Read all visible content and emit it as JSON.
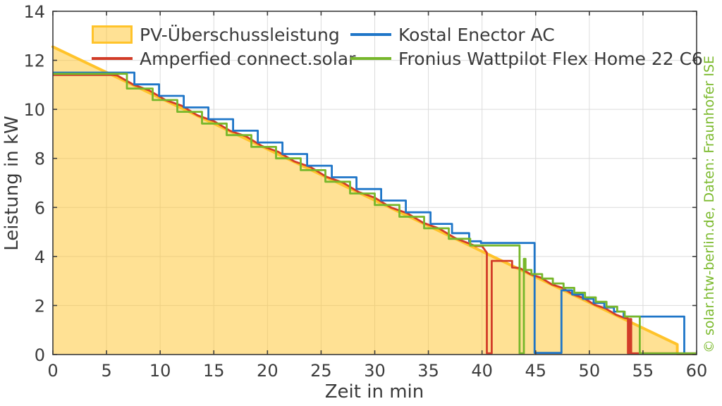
{
  "watermark": {
    "text": "© solar.htw-berlin.de, Daten: Fraunhofer ISE",
    "color": "#7CBA2E"
  },
  "legend": {
    "items": [
      {
        "label": "PV-Überschussleistung",
        "type": "patch",
        "color": "#FFC32A",
        "fill": "rgba(255,195,42,0.5)"
      },
      {
        "label": "Amperfied connect.solar",
        "type": "line",
        "color": "#D23C28"
      },
      {
        "label": "Kostal Enector AC",
        "type": "line",
        "color": "#1F76C8"
      },
      {
        "label": "Fronius Wattpilot Flex Home 22 C6",
        "type": "line",
        "color": "#77B72B"
      }
    ]
  },
  "chart_data": {
    "type": "area",
    "title": "",
    "xlabel": "Zeit in min",
    "ylabel": "Leistung in kW",
    "xlim": [
      0,
      60
    ],
    "ylim": [
      0,
      14
    ],
    "x_ticks": [
      0,
      5,
      10,
      15,
      20,
      25,
      30,
      35,
      40,
      45,
      50,
      55,
      60
    ],
    "y_ticks": [
      0,
      2,
      4,
      6,
      8,
      10,
      12,
      14
    ],
    "grid": true,
    "legend_position": "top-inside",
    "colors": {
      "grid": "#DCDCDC",
      "axis": "#3C3C3C",
      "tick_label": "#3C3C3C"
    },
    "series": [
      {
        "name": "PV-Überschussleistung",
        "type": "area",
        "color": "#FFC32A",
        "fill_opacity": 0.5,
        "points": [
          [
            0,
            12.55
          ],
          [
            58.2,
            0.41
          ],
          [
            58.2,
            0.03
          ],
          [
            59.9,
            0.03
          ]
        ],
        "fill_points": [
          [
            0,
            0
          ],
          [
            0,
            12.55
          ],
          [
            58.2,
            0.41
          ],
          [
            58.2,
            0
          ],
          [
            60,
            0
          ]
        ]
      },
      {
        "name": "Amperfied connect.solar",
        "type": "line",
        "color": "#D23C28",
        "points": [
          [
            0,
            11.4
          ],
          [
            5.6,
            11.4
          ],
          [
            6.0,
            11.38
          ],
          [
            7.5,
            11.01
          ],
          [
            9.0,
            10.77
          ],
          [
            10.5,
            10.38
          ],
          [
            12.0,
            10.15
          ],
          [
            13.5,
            9.75
          ],
          [
            15.0,
            9.52
          ],
          [
            16.5,
            9.13
          ],
          [
            18.0,
            8.9
          ],
          [
            19.5,
            8.5
          ],
          [
            21.0,
            8.27
          ],
          [
            22.5,
            7.88
          ],
          [
            24.0,
            7.65
          ],
          [
            25.5,
            7.25
          ],
          [
            27.0,
            7.02
          ],
          [
            28.5,
            6.63
          ],
          [
            30.0,
            6.4
          ],
          [
            31.5,
            6.0
          ],
          [
            33.0,
            5.77
          ],
          [
            34.5,
            5.38
          ],
          [
            36.0,
            5.14
          ],
          [
            37.5,
            4.75
          ],
          [
            38.8,
            4.53
          ],
          [
            39.4,
            4.42
          ],
          [
            40.0,
            4.42
          ],
          [
            40.45,
            4.15
          ],
          [
            40.45,
            0.05
          ],
          [
            40.9,
            0.05
          ],
          [
            40.9,
            3.82
          ],
          [
            42.8,
            3.82
          ],
          [
            42.8,
            3.55
          ],
          [
            43.5,
            3.53
          ],
          [
            44.5,
            3.28
          ],
          [
            45.5,
            3.13
          ],
          [
            46.5,
            2.86
          ],
          [
            47.5,
            2.72
          ],
          [
            48.5,
            2.45
          ],
          [
            49.5,
            2.3
          ],
          [
            50.5,
            2.03
          ],
          [
            51.5,
            1.88
          ],
          [
            52.5,
            1.62
          ],
          [
            53.3,
            1.49
          ],
          [
            53.6,
            1.47
          ],
          [
            53.6,
            0.05
          ],
          [
            53.75,
            0.05
          ],
          [
            53.75,
            1.45
          ],
          [
            53.9,
            1.45
          ],
          [
            53.9,
            0.05
          ],
          [
            60,
            0.05
          ]
        ]
      },
      {
        "name": "Kostal Enector AC",
        "type": "line",
        "color": "#1F76C8",
        "points": [
          [
            0,
            11.5
          ],
          [
            7.6,
            11.5
          ],
          [
            7.6,
            11.02
          ],
          [
            9.9,
            11.02
          ],
          [
            9.9,
            10.55
          ],
          [
            12.2,
            10.55
          ],
          [
            12.2,
            10.08
          ],
          [
            14.5,
            10.08
          ],
          [
            14.5,
            9.6
          ],
          [
            16.8,
            9.6
          ],
          [
            16.8,
            9.13
          ],
          [
            19.1,
            9.13
          ],
          [
            19.1,
            8.65
          ],
          [
            21.4,
            8.65
          ],
          [
            21.4,
            8.18
          ],
          [
            23.7,
            8.18
          ],
          [
            23.7,
            7.7
          ],
          [
            26.0,
            7.7
          ],
          [
            26.0,
            7.23
          ],
          [
            28.3,
            7.23
          ],
          [
            28.3,
            6.75
          ],
          [
            30.6,
            6.75
          ],
          [
            30.6,
            6.28
          ],
          [
            32.9,
            6.28
          ],
          [
            32.9,
            5.8
          ],
          [
            35.2,
            5.8
          ],
          [
            35.2,
            5.33
          ],
          [
            37.2,
            5.33
          ],
          [
            37.2,
            4.95
          ],
          [
            38.8,
            4.95
          ],
          [
            38.8,
            4.62
          ],
          [
            39.9,
            4.62
          ],
          [
            39.9,
            4.55
          ],
          [
            44.9,
            4.55
          ],
          [
            44.9,
            0.07
          ],
          [
            47.4,
            0.07
          ],
          [
            47.4,
            2.62
          ],
          [
            48.4,
            2.62
          ],
          [
            48.4,
            2.45
          ],
          [
            49.4,
            2.45
          ],
          [
            49.4,
            2.27
          ],
          [
            50.4,
            2.27
          ],
          [
            50.4,
            2.1
          ],
          [
            51.4,
            2.1
          ],
          [
            51.4,
            1.92
          ],
          [
            52.3,
            1.92
          ],
          [
            52.3,
            1.75
          ],
          [
            53.2,
            1.75
          ],
          [
            53.2,
            1.55
          ],
          [
            58.85,
            1.55
          ],
          [
            58.85,
            0.04
          ],
          [
            60,
            0.04
          ]
        ]
      },
      {
        "name": "Fronius Wattpilot Flex Home 22 C6",
        "type": "line",
        "color": "#77B72B",
        "points": [
          [
            0,
            11.45
          ],
          [
            6.9,
            11.45
          ],
          [
            6.9,
            10.85
          ],
          [
            9.3,
            10.85
          ],
          [
            9.3,
            10.38
          ],
          [
            11.6,
            10.38
          ],
          [
            11.6,
            9.9
          ],
          [
            13.9,
            9.9
          ],
          [
            13.9,
            9.42
          ],
          [
            16.2,
            9.42
          ],
          [
            16.2,
            8.95
          ],
          [
            18.5,
            8.95
          ],
          [
            18.5,
            8.47
          ],
          [
            20.8,
            8.47
          ],
          [
            20.8,
            8.0
          ],
          [
            23.1,
            8.0
          ],
          [
            23.1,
            7.52
          ],
          [
            25.4,
            7.52
          ],
          [
            25.4,
            7.05
          ],
          [
            27.7,
            7.05
          ],
          [
            27.7,
            6.57
          ],
          [
            30.0,
            6.57
          ],
          [
            30.0,
            6.1
          ],
          [
            32.3,
            6.1
          ],
          [
            32.3,
            5.62
          ],
          [
            34.6,
            5.62
          ],
          [
            34.6,
            5.15
          ],
          [
            36.9,
            5.15
          ],
          [
            36.9,
            4.72
          ],
          [
            38.9,
            4.72
          ],
          [
            38.9,
            4.45
          ],
          [
            43.5,
            4.45
          ],
          [
            43.5,
            0.05
          ],
          [
            43.9,
            0.05
          ],
          [
            43.9,
            3.9
          ],
          [
            44.05,
            3.9
          ],
          [
            44.05,
            3.45
          ],
          [
            44.6,
            3.45
          ],
          [
            44.6,
            3.28
          ],
          [
            45.6,
            3.28
          ],
          [
            45.6,
            3.1
          ],
          [
            46.6,
            3.1
          ],
          [
            46.6,
            2.9
          ],
          [
            47.6,
            2.9
          ],
          [
            47.6,
            2.72
          ],
          [
            48.6,
            2.72
          ],
          [
            48.6,
            2.52
          ],
          [
            49.6,
            2.52
          ],
          [
            49.6,
            2.33
          ],
          [
            50.6,
            2.33
          ],
          [
            50.6,
            2.15
          ],
          [
            51.6,
            2.15
          ],
          [
            51.6,
            1.95
          ],
          [
            52.6,
            1.95
          ],
          [
            52.6,
            1.75
          ],
          [
            53.3,
            1.75
          ],
          [
            53.3,
            1.55
          ],
          [
            54.7,
            1.55
          ],
          [
            54.7,
            0.05
          ],
          [
            60,
            0.05
          ]
        ]
      }
    ]
  }
}
